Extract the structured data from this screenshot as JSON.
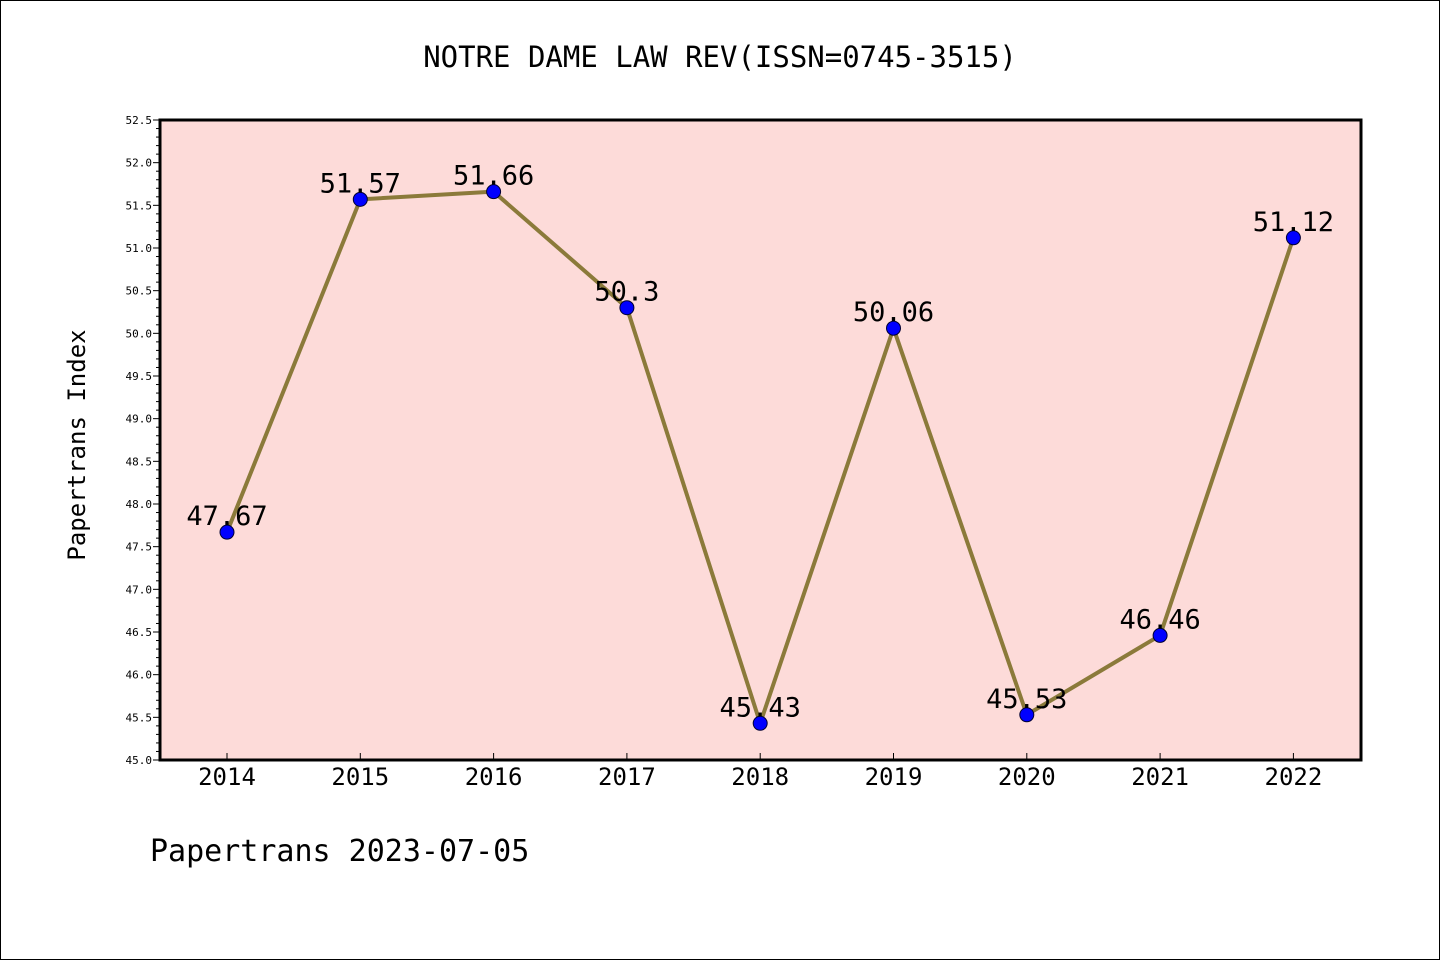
{
  "chart_data": {
    "type": "line",
    "title": "NOTRE DAME LAW REV(ISSN=0745-3515)",
    "xlabel": "",
    "ylabel": "Papertrans Index",
    "categories": [
      "2014",
      "2015",
      "2016",
      "2017",
      "2018",
      "2019",
      "2020",
      "2021",
      "2022"
    ],
    "series": [
      {
        "name": "Papertrans Index",
        "values": [
          47.67,
          51.57,
          51.66,
          50.3,
          45.43,
          50.06,
          45.53,
          46.46,
          51.12
        ],
        "labels": [
          "47.67",
          "51.57",
          "51.66",
          "50.3",
          "45.43",
          "50.06",
          "45.53",
          "46.46",
          "51.12"
        ]
      }
    ],
    "ylim": [
      45.0,
      52.5
    ],
    "yticks": [
      "45.0",
      "45.5",
      "46.0",
      "46.5",
      "47.0",
      "47.5",
      "48.0",
      "48.5",
      "49.0",
      "49.5",
      "50.0",
      "50.5",
      "51.0",
      "51.5",
      "52.0",
      "52.5"
    ],
    "grid": false,
    "colors": {
      "plot_background": "#fddbd9",
      "line": "#8b7a3a",
      "marker": "#0000ff"
    }
  },
  "footer": {
    "text": "Papertrans 2023-07-05"
  }
}
